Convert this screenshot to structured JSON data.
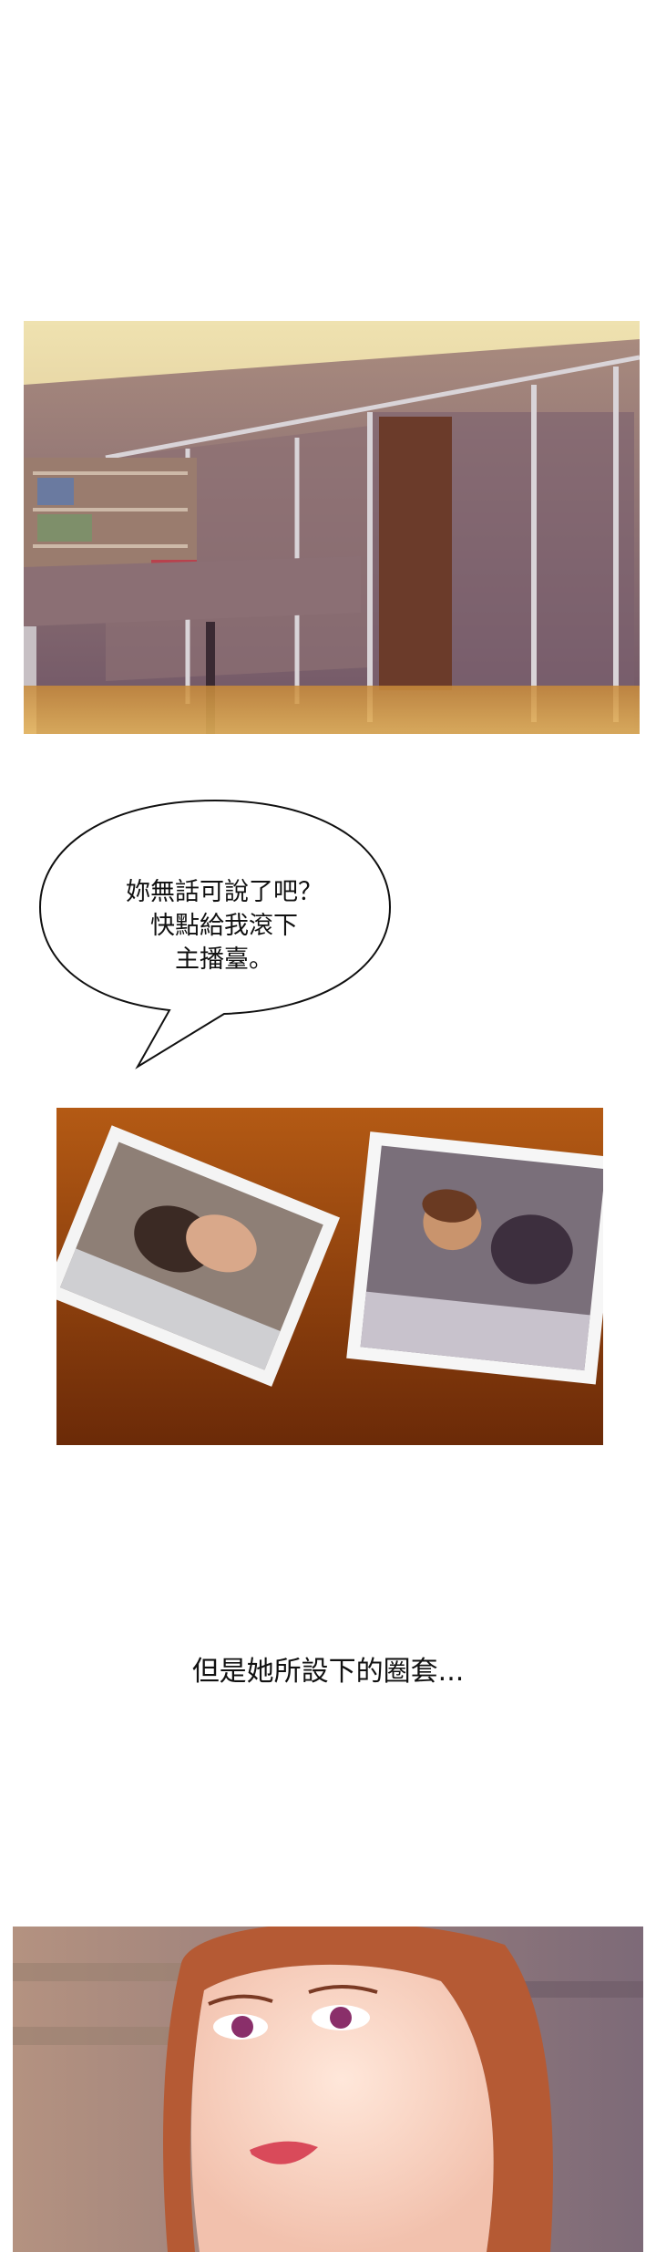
{
  "speech_bubble": {
    "text": "妳無話可說了吧？\n快點給我滾下\n主播臺。"
  },
  "narration": {
    "text": "但是她所設下的圈套..."
  }
}
